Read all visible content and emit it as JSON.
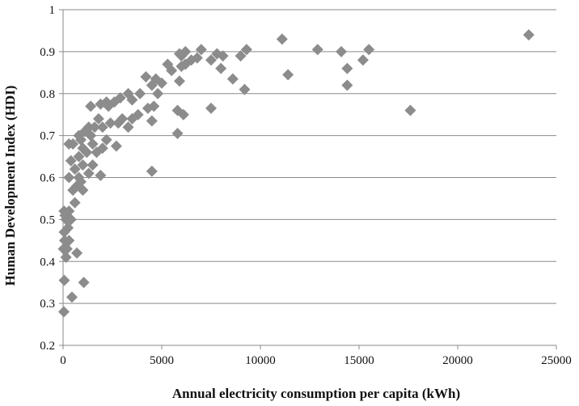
{
  "chart_data": {
    "type": "scatter",
    "title": "",
    "xlabel": "Annual electricity consumption per capita (kWh)",
    "ylabel": "Human Development Index (HDI)",
    "xlim": [
      0,
      25000
    ],
    "ylim": [
      0.2,
      1.0
    ],
    "x_ticks": [
      0,
      5000,
      10000,
      15000,
      20000,
      25000
    ],
    "x_tick_labels": [
      "0",
      "5000",
      "10000",
      "15000",
      "20000",
      "25000"
    ],
    "y_ticks": [
      0.2,
      0.3,
      0.4,
      0.5,
      0.6,
      0.7,
      0.8,
      0.9,
      1.0
    ],
    "y_tick_labels": [
      "0.2",
      "0.3",
      "0.4",
      "0.5",
      "0.6",
      "0.7",
      "0.8",
      "0.9",
      "1"
    ],
    "grid": "horizontal major gridlines",
    "legend": "none",
    "marker": "diamond",
    "colors": {
      "marker": "#8c8c8c",
      "gridline": "#8a8a8a",
      "axis": "#8a8a8a"
    },
    "series": [
      {
        "points": [
          [
            40,
            0.28
          ],
          [
            60,
            0.355
          ],
          [
            450,
            0.315
          ],
          [
            1050,
            0.35
          ],
          [
            150,
            0.41
          ],
          [
            700,
            0.42
          ],
          [
            20,
            0.43
          ],
          [
            200,
            0.43
          ],
          [
            80,
            0.45
          ],
          [
            300,
            0.45
          ],
          [
            60,
            0.47
          ],
          [
            250,
            0.48
          ],
          [
            150,
            0.5
          ],
          [
            400,
            0.5
          ],
          [
            100,
            0.51
          ],
          [
            50,
            0.52
          ],
          [
            300,
            0.52
          ],
          [
            600,
            0.54
          ],
          [
            1000,
            0.57
          ],
          [
            500,
            0.57
          ],
          [
            700,
            0.58
          ],
          [
            900,
            0.59
          ],
          [
            300,
            0.6
          ],
          [
            800,
            0.6
          ],
          [
            1900,
            0.605
          ],
          [
            1300,
            0.61
          ],
          [
            4500,
            0.615
          ],
          [
            600,
            0.62
          ],
          [
            1000,
            0.63
          ],
          [
            1500,
            0.63
          ],
          [
            400,
            0.64
          ],
          [
            800,
            0.65
          ],
          [
            1200,
            0.66
          ],
          [
            1700,
            0.66
          ],
          [
            1000,
            0.67
          ],
          [
            2000,
            0.67
          ],
          [
            2700,
            0.675
          ],
          [
            500,
            0.68
          ],
          [
            1500,
            0.68
          ],
          [
            300,
            0.68
          ],
          [
            900,
            0.69
          ],
          [
            2200,
            0.69
          ],
          [
            800,
            0.7
          ],
          [
            1400,
            0.7
          ],
          [
            5800,
            0.705
          ],
          [
            1100,
            0.71
          ],
          [
            2000,
            0.72
          ],
          [
            1300,
            0.72
          ],
          [
            1600,
            0.72
          ],
          [
            3300,
            0.72
          ],
          [
            2400,
            0.73
          ],
          [
            2800,
            0.73
          ],
          [
            4500,
            0.735
          ],
          [
            1800,
            0.74
          ],
          [
            3000,
            0.74
          ],
          [
            3500,
            0.74
          ],
          [
            3800,
            0.75
          ],
          [
            6100,
            0.75
          ],
          [
            5800,
            0.76
          ],
          [
            17600,
            0.76
          ],
          [
            4300,
            0.765
          ],
          [
            2300,
            0.77
          ],
          [
            1400,
            0.77
          ],
          [
            7500,
            0.765
          ],
          [
            4600,
            0.77
          ],
          [
            1900,
            0.775
          ],
          [
            2600,
            0.78
          ],
          [
            2200,
            0.78
          ],
          [
            3500,
            0.785
          ],
          [
            2900,
            0.79
          ],
          [
            3900,
            0.8
          ],
          [
            3300,
            0.8
          ],
          [
            4800,
            0.8
          ],
          [
            9200,
            0.81
          ],
          [
            14400,
            0.82
          ],
          [
            4500,
            0.82
          ],
          [
            5000,
            0.825
          ],
          [
            5900,
            0.83
          ],
          [
            4700,
            0.835
          ],
          [
            8600,
            0.835
          ],
          [
            4200,
            0.84
          ],
          [
            11400,
            0.845
          ],
          [
            5500,
            0.855
          ],
          [
            8000,
            0.86
          ],
          [
            14400,
            0.86
          ],
          [
            6000,
            0.865
          ],
          [
            5300,
            0.87
          ],
          [
            6200,
            0.87
          ],
          [
            15200,
            0.88
          ],
          [
            6500,
            0.88
          ],
          [
            7500,
            0.88
          ],
          [
            6800,
            0.885
          ],
          [
            8100,
            0.89
          ],
          [
            6000,
            0.89
          ],
          [
            9000,
            0.89
          ],
          [
            7800,
            0.895
          ],
          [
            5900,
            0.895
          ],
          [
            14100,
            0.9
          ],
          [
            6200,
            0.9
          ],
          [
            9300,
            0.905
          ],
          [
            12900,
            0.905
          ],
          [
            7000,
            0.905
          ],
          [
            15500,
            0.905
          ],
          [
            11100,
            0.93
          ],
          [
            23600,
            0.94
          ]
        ]
      }
    ]
  }
}
